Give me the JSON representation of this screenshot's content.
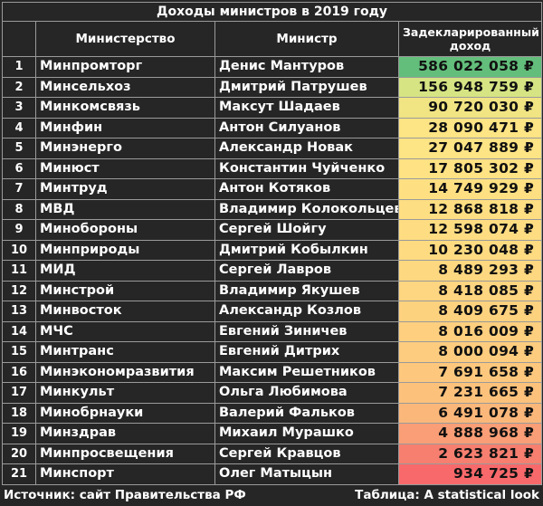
{
  "title": "Доходы министров в 2019 году",
  "headers": {
    "ministry": "Министерство",
    "minister": "Министр",
    "income": "Задекларированный доход"
  },
  "rows": [
    {
      "n": "1",
      "ministry": "Минпромторг",
      "minister": "Денис Мантуров",
      "income": "586 022 058 ₽",
      "color": "#63be7b"
    },
    {
      "n": "2",
      "ministry": "Минсельхоз",
      "minister": "Дмитрий Патрушев",
      "income": "156 948 759 ₽",
      "color": "#d6e483"
    },
    {
      "n": "3",
      "ministry": "Минкомсвязь",
      "minister": "Максут Шадаев",
      "income": "90 720 030 ₽",
      "color": "#f1e483"
    },
    {
      "n": "4",
      "ministry": "Минфин",
      "minister": "Антон Силуанов",
      "income": "28 090 471 ₽",
      "color": "#fde484"
    },
    {
      "n": "5",
      "ministry": "Минэнерго",
      "minister": "Александр Новак",
      "income": "27 047 889 ₽",
      "color": "#fde484"
    },
    {
      "n": "6",
      "ministry": "Минюст",
      "minister": "Константин Чуйченко",
      "income": "17 805 302 ₽",
      "color": "#fee283"
    },
    {
      "n": "7",
      "ministry": "Минтруд",
      "minister": "Антон Котяков",
      "income": "14 749 929 ₽",
      "color": "#fee082"
    },
    {
      "n": "8",
      "ministry": "МВД",
      "minister": "Владимир Колокольцев",
      "income": "12 868 818 ₽",
      "color": "#fede82"
    },
    {
      "n": "9",
      "ministry": "Минобороны",
      "minister": "Сергей Шойгу",
      "income": "12 598 074 ₽",
      "color": "#fedd82"
    },
    {
      "n": "10",
      "ministry": "Минприроды",
      "minister": "Дмитрий Кобылкин",
      "income": "10 230 048 ₽",
      "color": "#fedb81"
    },
    {
      "n": "11",
      "ministry": "МИД",
      "minister": "Сергей Лавров",
      "income": "8 489 293 ₽",
      "color": "#fed880"
    },
    {
      "n": "12",
      "ministry": "Минстрой",
      "minister": "Владимир Якушев",
      "income": "8 418 085 ₽",
      "color": "#fed580"
    },
    {
      "n": "13",
      "ministry": "Минвосток",
      "minister": "Александр Козлов",
      "income": "8 409 675 ₽",
      "color": "#fdd27f"
    },
    {
      "n": "14",
      "ministry": "МЧС",
      "minister": "Евгений Зиничев",
      "income": "8 016 009 ₽",
      "color": "#fdcf7e"
    },
    {
      "n": "15",
      "ministry": "Минтранс",
      "minister": "Евгений Дитрих",
      "income": "8 000 094 ₽",
      "color": "#fdcc7e"
    },
    {
      "n": "16",
      "ministry": "Минэкономразвития",
      "minister": "Максим Решетников",
      "income": "7 691 658 ₽",
      "color": "#fdc87d"
    },
    {
      "n": "17",
      "ministry": "Минкульт",
      "minister": "Ольга Любимова",
      "income": "7 231 665 ₽",
      "color": "#fcc27c"
    },
    {
      "n": "18",
      "ministry": "Минобрнауки",
      "minister": "Валерий Фальков",
      "income": "6 491 078 ₽",
      "color": "#fbb77a"
    },
    {
      "n": "19",
      "ministry": "Минздрав",
      "minister": "Михаил Мурашко",
      "income": "4 888 968 ₽",
      "color": "#f99e76"
    },
    {
      "n": "20",
      "ministry": "Минпросвещения",
      "minister": "Сергей Кравцов",
      "income": "2 623 821 ₽",
      "color": "#f67f70"
    },
    {
      "n": "21",
      "ministry": "Минспорт",
      "minister": "Олег Матыцын",
      "income": "934 725 ₽",
      "color": "#f8696b"
    }
  ],
  "footer": {
    "source": "Источник: сайт Правительства РФ",
    "credit": "Таблица: A statistical look"
  }
}
